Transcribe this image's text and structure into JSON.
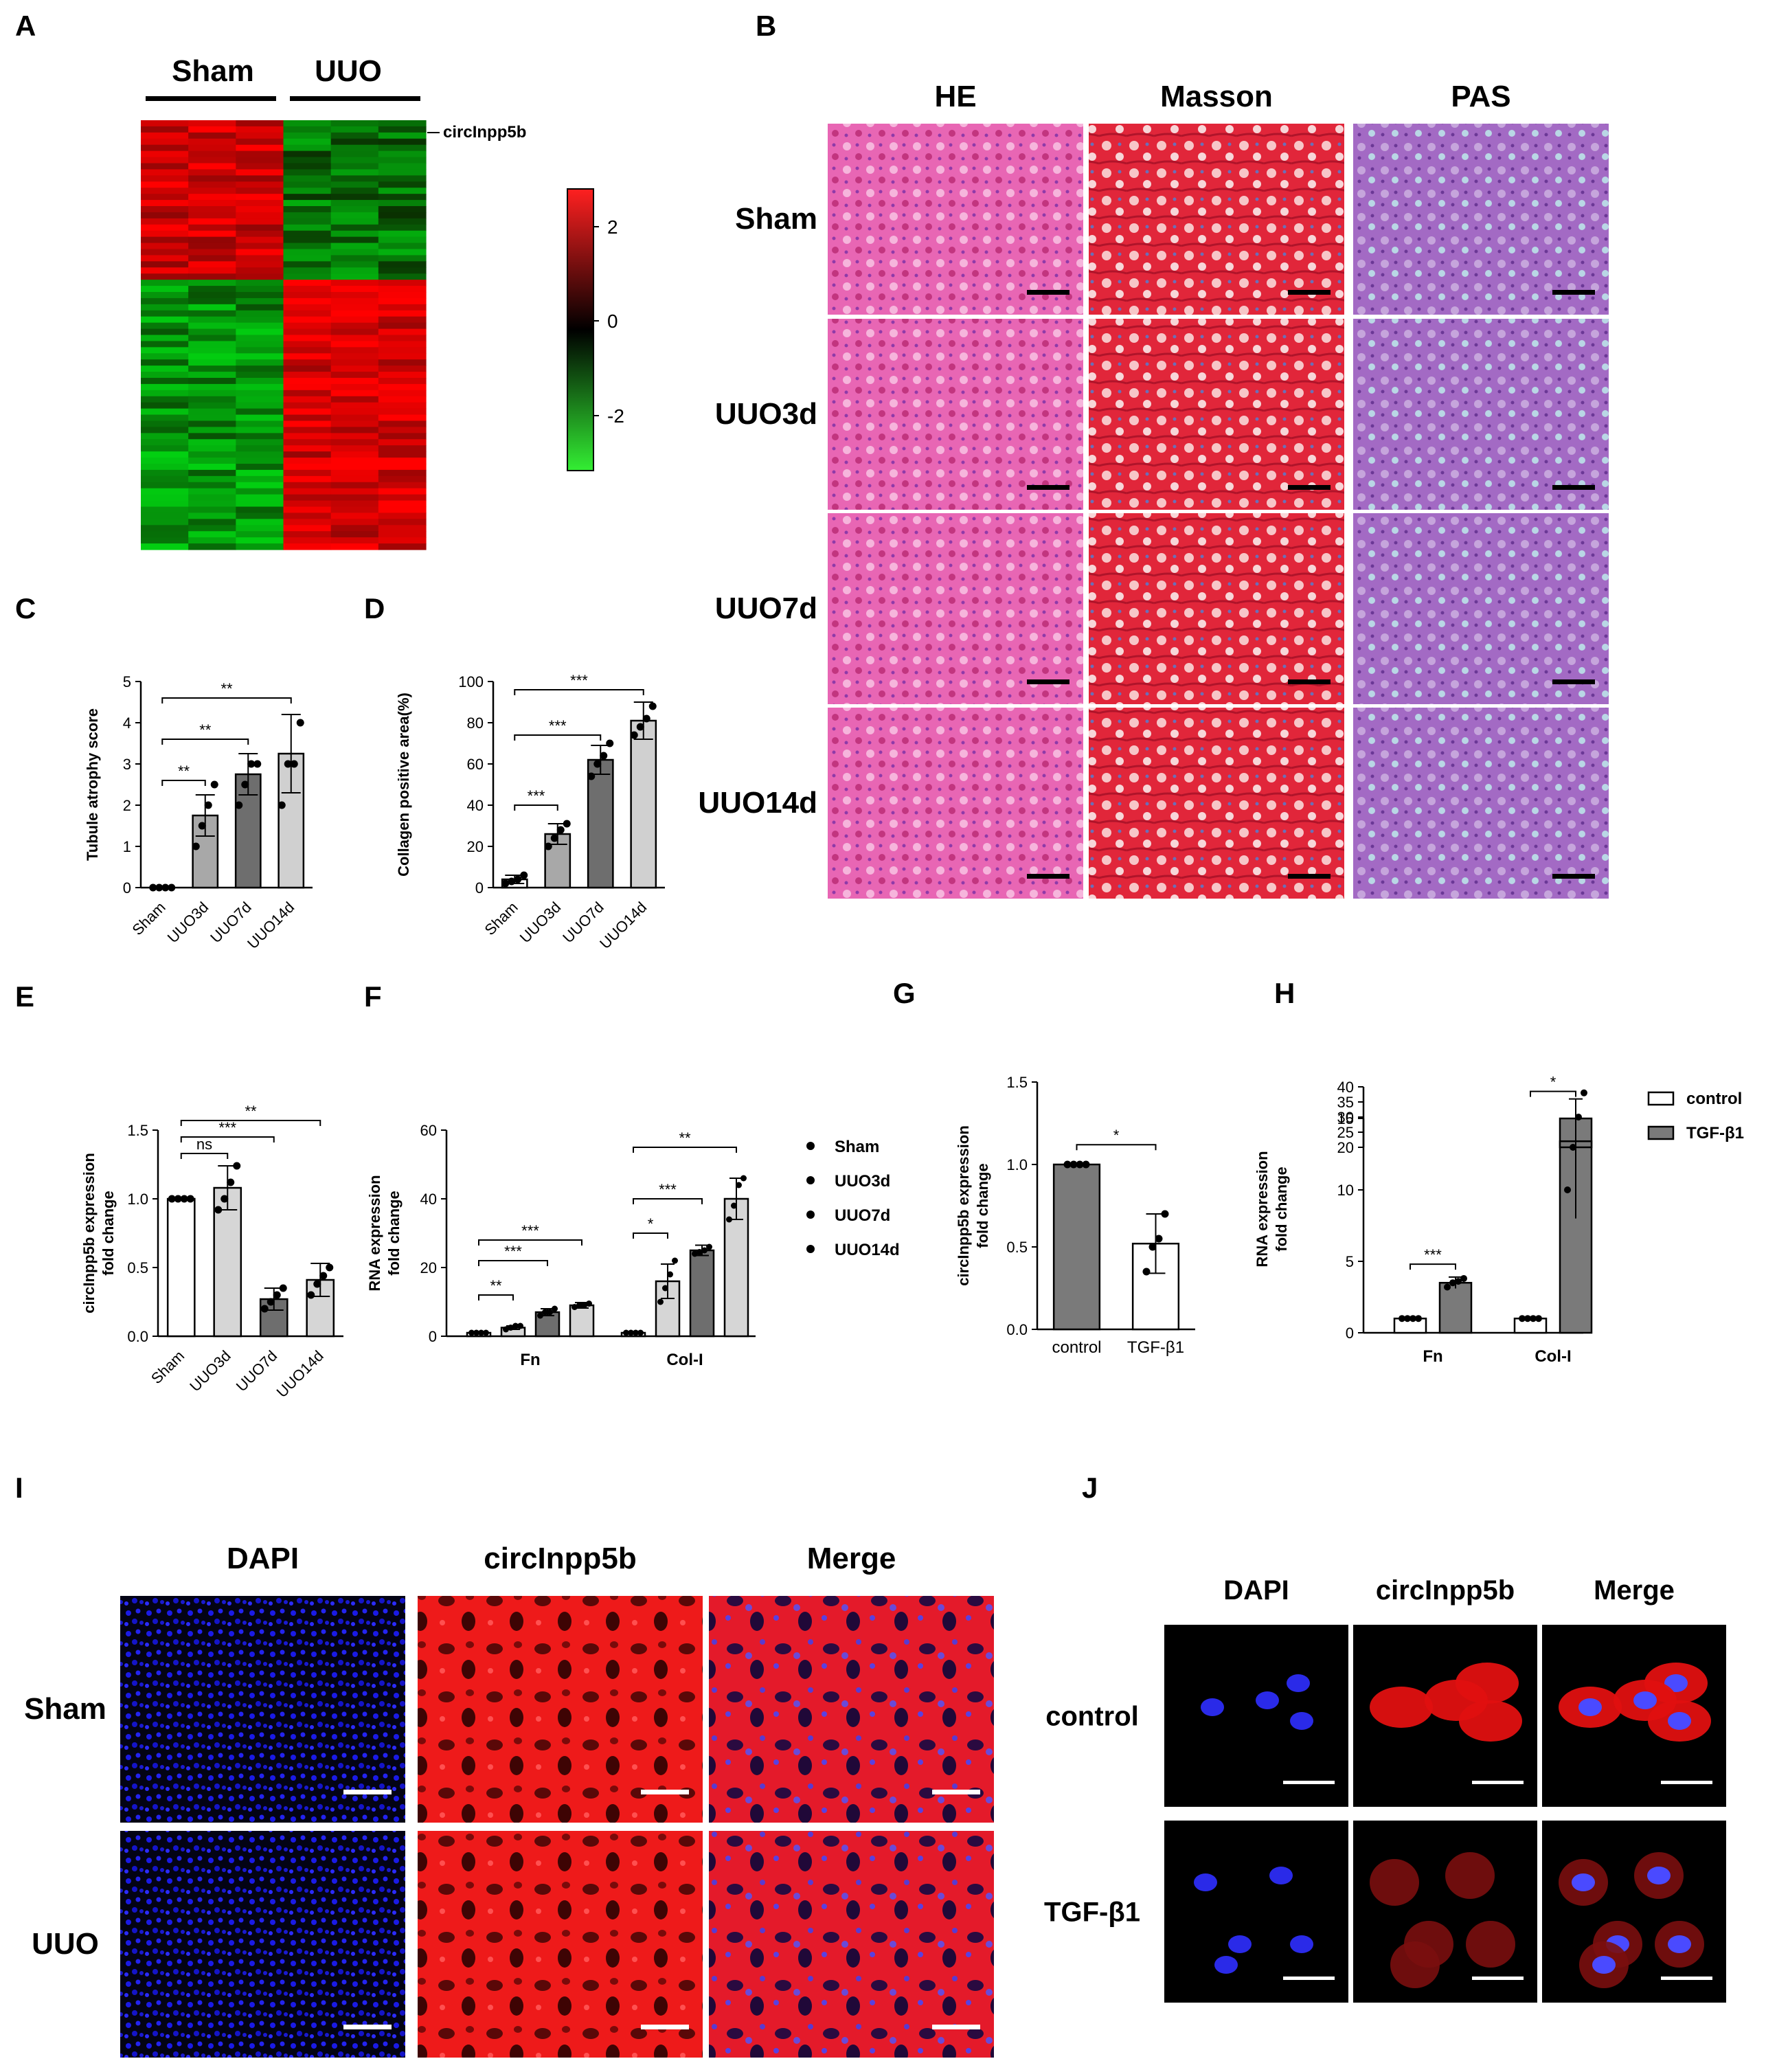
{
  "panels": {
    "A": "A",
    "B": "B",
    "C": "C",
    "D": "D",
    "E": "E",
    "F": "F",
    "G": "G",
    "H": "H",
    "I": "I",
    "J": "J"
  },
  "heatmap": {
    "group_labels": [
      "Sham",
      "UUO"
    ],
    "row_label": "circInpp5b",
    "colorbar_ticks": [
      "2",
      "0",
      "-2"
    ]
  },
  "histology": {
    "stains": [
      "HE",
      "Masson",
      "PAS"
    ],
    "groups": [
      "Sham",
      "UUO3d",
      "UUO7d",
      "UUO14d"
    ],
    "colors": {
      "HE": "#e85fb0",
      "Masson": "#e0263a",
      "PAS": "#a66cc4"
    }
  },
  "fish_tissue": {
    "channels": [
      "DAPI",
      "circInpp5b",
      "Merge"
    ],
    "groups": [
      "Sham",
      "UUO"
    ]
  },
  "fish_cell": {
    "channels": [
      "DAPI",
      "circInpp5b",
      "Merge"
    ],
    "groups": [
      "control",
      "TGF-β1"
    ]
  },
  "chart_data": [
    {
      "id": "C",
      "type": "bar",
      "ylabel": "Tubule atrophy score",
      "categories": [
        "Sham",
        "UUO3d",
        "UUO7d",
        "UUO14d"
      ],
      "values": [
        0,
        1.75,
        2.75,
        3.25
      ],
      "errors": [
        0,
        0.5,
        0.5,
        0.95
      ],
      "points": [
        [
          0,
          0,
          0,
          0
        ],
        [
          1.0,
          1.5,
          2.0,
          2.5
        ],
        [
          2.0,
          2.5,
          3.0,
          3.0
        ],
        [
          2.0,
          3.0,
          3.0,
          4.0
        ]
      ],
      "colors": [
        "#ffffff",
        "#a8a8a8",
        "#6e6e6e",
        "#d0d0d0"
      ],
      "ylim": [
        0,
        5
      ],
      "yticks": [
        "0",
        "1",
        "2",
        "3",
        "4",
        "5"
      ],
      "sig": [
        {
          "from": 0,
          "to": 1,
          "label": "**",
          "y": 2.6
        },
        {
          "from": 0,
          "to": 2,
          "label": "**",
          "y": 3.6
        },
        {
          "from": 0,
          "to": 3,
          "label": "**",
          "y": 4.6
        }
      ]
    },
    {
      "id": "D",
      "type": "bar",
      "ylabel": "Collagen positive area(%)",
      "categories": [
        "Sham",
        "UUO3d",
        "UUO7d",
        "UUO14d"
      ],
      "values": [
        4,
        26,
        62,
        81
      ],
      "errors": [
        2,
        5,
        7,
        9
      ],
      "points": [
        [
          2,
          3,
          4,
          6
        ],
        [
          20,
          24,
          28,
          31
        ],
        [
          54,
          60,
          64,
          70
        ],
        [
          74,
          78,
          82,
          88
        ]
      ],
      "colors": [
        "#ffffff",
        "#a8a8a8",
        "#6e6e6e",
        "#d0d0d0"
      ],
      "ylim": [
        0,
        100
      ],
      "yticks": [
        "0",
        "20",
        "40",
        "60",
        "80",
        "100"
      ],
      "sig": [
        {
          "from": 0,
          "to": 1,
          "label": "***",
          "y": 40
        },
        {
          "from": 0,
          "to": 2,
          "label": "***",
          "y": 74
        },
        {
          "from": 0,
          "to": 3,
          "label": "***",
          "y": 96
        }
      ]
    },
    {
      "id": "E",
      "type": "bar",
      "ylabel": "circInpp5b expression\nfold change",
      "categories": [
        "Sham",
        "UUO3d",
        "UUO7d",
        "UUO14d"
      ],
      "values": [
        1.0,
        1.08,
        0.27,
        0.41
      ],
      "errors": [
        0,
        0.16,
        0.08,
        0.12
      ],
      "points": [
        [
          1,
          1,
          1,
          1
        ],
        [
          0.92,
          1.0,
          1.12,
          1.24
        ],
        [
          0.2,
          0.25,
          0.3,
          0.35
        ],
        [
          0.3,
          0.38,
          0.44,
          0.5
        ]
      ],
      "colors": [
        "#ffffff",
        "#d6d6d6",
        "#6e6e6e",
        "#d6d6d6"
      ],
      "ylim": [
        0,
        1.5
      ],
      "yticks": [
        "0.0",
        "0.5",
        "1.0",
        "1.5"
      ],
      "sig": [
        {
          "from": 0,
          "to": 1,
          "label": "ns",
          "y": 1.33
        },
        {
          "from": 0,
          "to": 2,
          "label": "***",
          "y": 1.45
        },
        {
          "from": 0,
          "to": 3,
          "label": "**",
          "y": 1.57
        }
      ]
    },
    {
      "id": "F",
      "type": "bar",
      "ylabel": "RNA expression\nfold change",
      "groups": [
        "Fn",
        "Col-I"
      ],
      "series": [
        {
          "name": "Sham",
          "values": [
            1,
            1
          ],
          "errors": [
            0,
            0
          ],
          "color": "#ffffff"
        },
        {
          "name": "UUO3d",
          "values": [
            2.5,
            16
          ],
          "errors": [
            0.5,
            5
          ],
          "color": "#d6d6d6"
        },
        {
          "name": "UUO7d",
          "values": [
            7,
            25
          ],
          "errors": [
            1,
            1.5
          ],
          "color": "#6e6e6e"
        },
        {
          "name": "UUO14d",
          "values": [
            9,
            40
          ],
          "errors": [
            0.8,
            6
          ],
          "color": "#d6d6d6"
        }
      ],
      "points": [
        [
          [
            1,
            1,
            1,
            1
          ],
          [
            2,
            2.5,
            3,
            3
          ],
          [
            6,
            7,
            7,
            8
          ],
          [
            8.5,
            9,
            9,
            9.5
          ]
        ],
        [
          [
            1,
            1,
            1,
            1
          ],
          [
            10,
            14,
            18,
            22
          ],
          [
            24,
            24.5,
            25,
            26
          ],
          [
            34,
            38,
            44,
            46
          ]
        ]
      ],
      "ylim": [
        0,
        60
      ],
      "yticks": [
        "0",
        "20",
        "40",
        "60"
      ],
      "sig": [
        {
          "group": 0,
          "from": 0,
          "to": 1,
          "label": "**",
          "y": 12
        },
        {
          "group": 0,
          "from": 0,
          "to": 2,
          "label": "***",
          "y": 22
        },
        {
          "group": 0,
          "from": 0,
          "to": 3,
          "label": "***",
          "y": 28
        },
        {
          "group": 1,
          "from": 0,
          "to": 1,
          "label": "*",
          "y": 30
        },
        {
          "group": 1,
          "from": 0,
          "to": 2,
          "label": "***",
          "y": 40
        },
        {
          "group": 1,
          "from": 0,
          "to": 3,
          "label": "**",
          "y": 55
        }
      ],
      "legend": [
        "Sham",
        "UUO3d",
        "UUO7d",
        "UUO14d"
      ]
    },
    {
      "id": "G",
      "type": "bar",
      "ylabel": "circInpp5b expression\nfold change",
      "categories": [
        "control",
        "TGF-β1"
      ],
      "values": [
        1.0,
        0.52
      ],
      "errors": [
        0,
        0.18
      ],
      "points": [
        [
          1,
          1,
          1,
          1
        ],
        [
          0.35,
          0.5,
          0.55,
          0.7
        ]
      ],
      "colors": [
        "#7a7a7a",
        "#ffffff"
      ],
      "ylim": [
        0,
        1.5
      ],
      "yticks": [
        "0.0",
        "0.5",
        "1.0",
        "1.5"
      ],
      "sig": [
        {
          "from": 0,
          "to": 1,
          "label": "*",
          "y": 1.12
        }
      ]
    },
    {
      "id": "H",
      "type": "bar",
      "ylabel": "RNA expression\nfold change",
      "groups": [
        "Fn",
        "Col-I"
      ],
      "series": [
        {
          "name": "control",
          "values": [
            1,
            1
          ],
          "errors": [
            0,
            0
          ],
          "color": "#ffffff"
        },
        {
          "name": "TGF-β1",
          "values": [
            3.5,
            22
          ],
          "errors": [
            0.4,
            14
          ],
          "color": "#7a7a7a"
        }
      ],
      "points": [
        [
          [
            1,
            1,
            1,
            1
          ],
          [
            3.2,
            3.5,
            3.6,
            3.8
          ]
        ],
        [
          [
            1,
            1,
            1,
            1
          ],
          [
            10,
            20,
            30,
            38
          ]
        ]
      ],
      "lower_ticks": [
        "0",
        "5",
        "10",
        "15"
      ],
      "upper_ticks": [
        "20",
        "25",
        "30",
        "35",
        "40"
      ],
      "sig": [
        {
          "group": 0,
          "label": "***"
        },
        {
          "group": 1,
          "label": "*"
        }
      ],
      "legend": [
        "control",
        "TGF-β1"
      ]
    }
  ]
}
